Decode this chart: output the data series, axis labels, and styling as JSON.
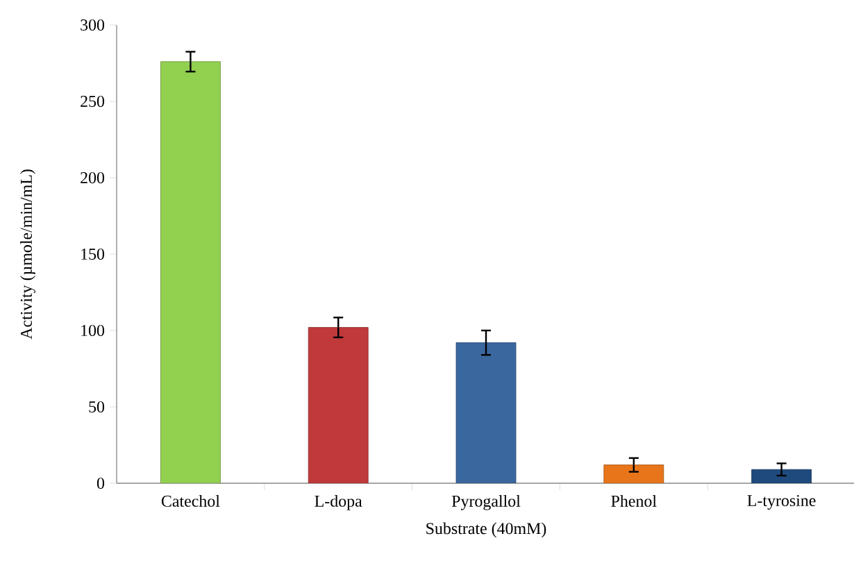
{
  "chart_data": {
    "type": "bar",
    "xlabel": "Substrate (40mM)",
    "ylabel": "Activity  (µmole/min/mL)",
    "categories": [
      "Catechol",
      "L-dopa",
      "Pyrogallol",
      "Phenol",
      "L-tyrosine"
    ],
    "values": [
      276,
      102,
      92,
      12,
      9
    ],
    "errors": [
      6.5,
      6.5,
      8,
      4.5,
      4
    ],
    "colors": [
      "#92d050",
      "#c0393b",
      "#3a679e",
      "#e8751a",
      "#1f4a7d"
    ],
    "ylim": [
      0,
      300
    ],
    "yticks": [
      0,
      50,
      100,
      150,
      200,
      250,
      300
    ],
    "grid": false
  }
}
